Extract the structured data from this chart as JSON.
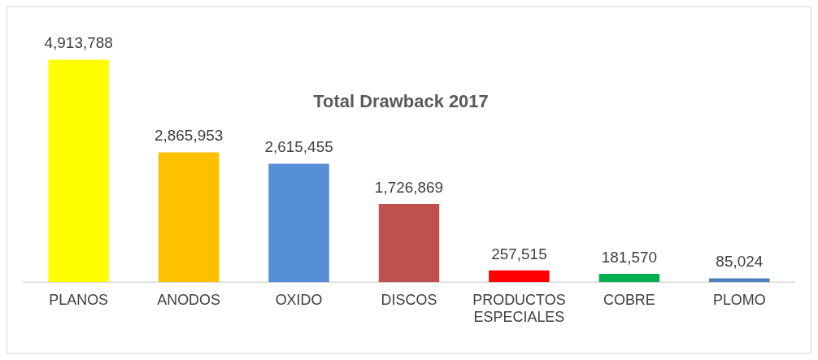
{
  "chart_data": {
    "type": "bar",
    "title": "Total Drawback 2017",
    "categories": [
      "PLANOS",
      "ANODOS",
      "OXIDO",
      "DISCOS",
      "PRODUCTOS ESPECIALES",
      "COBRE",
      "PLOMO"
    ],
    "values": [
      4913788,
      2865953,
      2615455,
      1726869,
      257515,
      181570,
      85024
    ],
    "colors": [
      "#ffff00",
      "#ffc000",
      "#558ed5",
      "#c0504d",
      "#ff0000",
      "#00b050",
      "#4f81bd"
    ],
    "value_labels": [
      "4,913,788",
      "2,865,953",
      "2,615,455",
      "1,726,869",
      "257,515",
      "181,570",
      "85,024"
    ],
    "grid": false,
    "legend": false
  }
}
